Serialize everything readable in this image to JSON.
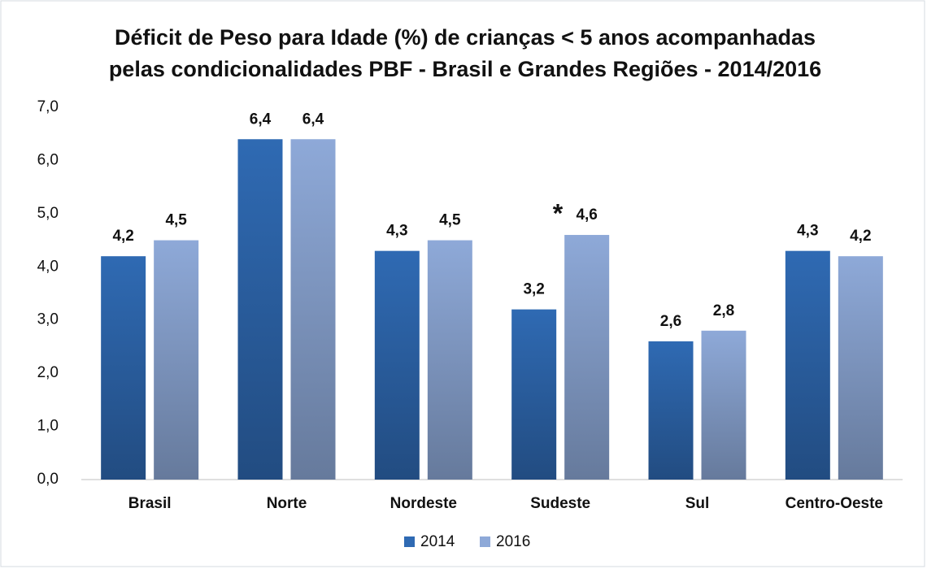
{
  "chart_data": {
    "type": "bar",
    "title": "Déficit de Peso para Idade (%) de crianças < 5 anos acompanhadas",
    "subtitle": "pelas condicionalidades PBF - Brasil e Grandes Regiões - 2014/2016",
    "categories": [
      "Brasil",
      "Norte",
      "Nordeste",
      "Sudeste",
      "Sul",
      "Centro-Oeste"
    ],
    "series": [
      {
        "name": "2014",
        "color": "#2f6ab3",
        "values": [
          4.2,
          6.4,
          4.3,
          3.2,
          2.6,
          4.3
        ],
        "value_labels": [
          "4,2",
          "6,4",
          "4,3",
          "3,2",
          "2,6",
          "4,3"
        ]
      },
      {
        "name": "2016",
        "color": "#8ea9d8",
        "values": [
          4.5,
          6.4,
          4.5,
          4.6,
          2.8,
          4.2
        ],
        "value_labels": [
          "4,5",
          "6,4",
          "4,5",
          "4,6",
          "2,8",
          "4,2"
        ]
      }
    ],
    "annotation": "*",
    "ylim": [
      0,
      7
    ],
    "yticks": [
      {
        "value": 0,
        "label": "0,0"
      },
      {
        "value": 1,
        "label": "1,0"
      },
      {
        "value": 2,
        "label": "2,0"
      },
      {
        "value": 3,
        "label": "3,0"
      },
      {
        "value": 4,
        "label": "4,0"
      },
      {
        "value": 5,
        "label": "5,0"
      },
      {
        "value": 6,
        "label": "6,0"
      },
      {
        "value": 7,
        "label": "7,0"
      }
    ],
    "grid": false,
    "legend": "bottom"
  }
}
